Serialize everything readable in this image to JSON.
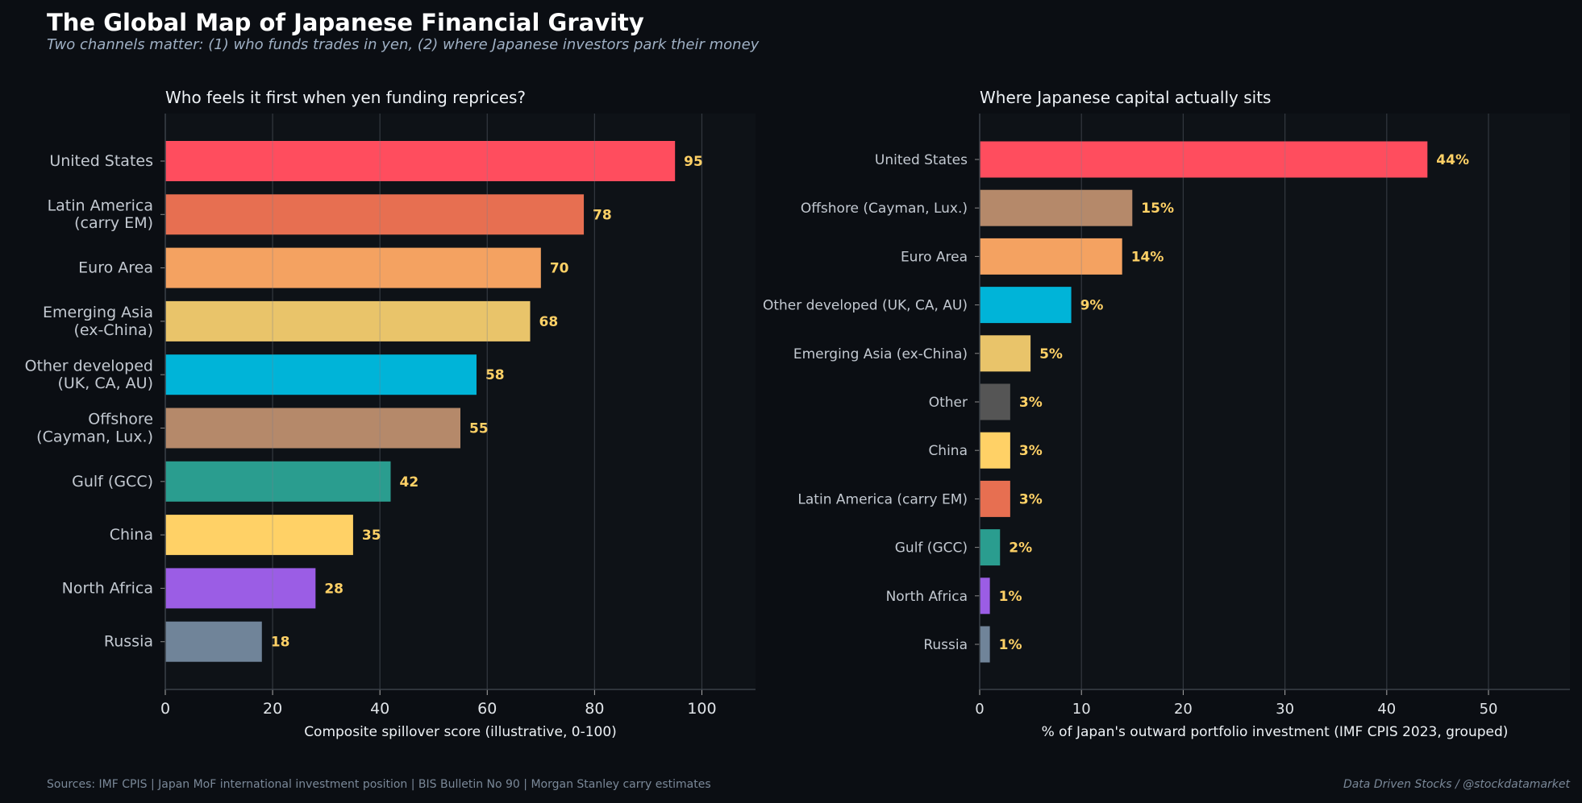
{
  "header": {
    "title": "The Global Map of Japanese Financial Gravity",
    "subtitle": "Two channels matter: (1) who funds trades in yen, (2) where Japanese investors park their money"
  },
  "footer": {
    "sources": "Sources: IMF CPIS  |  Japan MoF international investment position  |  BIS Bulletin No 90  |  Morgan Stanley carry estimates",
    "credit": "Data Driven Stocks / @stockdatamarket"
  },
  "colors": {
    "background": "#0b0e13",
    "plot_bg": "#0e1217",
    "value_label": "#ffd166"
  },
  "chart_data": [
    {
      "type": "bar",
      "orientation": "horizontal",
      "title": "Who feels it first when yen funding reprices?",
      "xlabel": "Composite spillover score (illustrative, 0-100)",
      "ylabel": "",
      "xlim": [
        0,
        110
      ],
      "xticks": [
        0,
        20,
        40,
        60,
        80,
        100
      ],
      "value_suffix": "",
      "categories": [
        [
          "United States"
        ],
        [
          "Latin America",
          "(carry EM)"
        ],
        [
          "Euro Area"
        ],
        [
          "Emerging Asia",
          "(ex-China)"
        ],
        [
          "Other developed",
          "(UK, CA, AU)"
        ],
        [
          "Offshore",
          "(Cayman, Lux.)"
        ],
        [
          "Gulf (GCC)"
        ],
        [
          "China"
        ],
        [
          "North Africa"
        ],
        [
          "Russia"
        ]
      ],
      "values": [
        95,
        78,
        70,
        68,
        58,
        55,
        42,
        35,
        28,
        18
      ],
      "colors": [
        "#ff4d5e",
        "#e76f51",
        "#f4a261",
        "#e9c46a",
        "#00b4d8",
        "#b5896a",
        "#2a9d8f",
        "#ffd166",
        "#9b5de5",
        "#708499"
      ],
      "grid": true
    },
    {
      "type": "bar",
      "orientation": "horizontal",
      "title": "Where Japanese capital actually sits",
      "xlabel": "% of Japan's outward portfolio investment (IMF CPIS 2023, grouped)",
      "ylabel": "",
      "xlim": [
        0,
        58
      ],
      "xticks": [
        0,
        10,
        20,
        30,
        40,
        50
      ],
      "value_suffix": "%",
      "categories": [
        [
          "United States"
        ],
        [
          "Offshore (Cayman, Lux.)"
        ],
        [
          "Euro Area"
        ],
        [
          "Other developed (UK, CA, AU)"
        ],
        [
          "Emerging Asia (ex-China)"
        ],
        [
          "Other"
        ],
        [
          "China"
        ],
        [
          "Latin America (carry EM)"
        ],
        [
          "Gulf (GCC)"
        ],
        [
          "North Africa"
        ],
        [
          "Russia"
        ]
      ],
      "values": [
        44,
        15,
        14,
        9,
        5,
        3,
        3,
        3,
        2,
        1,
        1
      ],
      "colors": [
        "#ff4d5e",
        "#b5896a",
        "#f4a261",
        "#00b4d8",
        "#e9c46a",
        "#555555",
        "#ffd166",
        "#e76f51",
        "#2a9d8f",
        "#9b5de5",
        "#708499"
      ],
      "grid": true
    }
  ]
}
